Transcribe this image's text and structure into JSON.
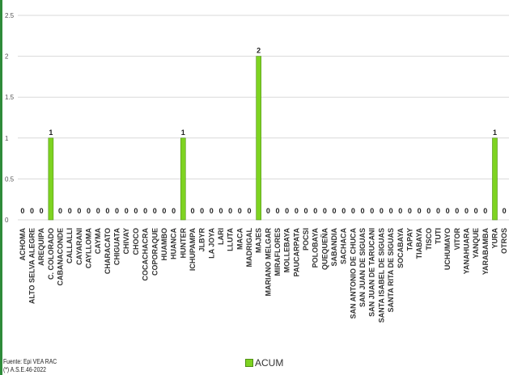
{
  "chart_data": {
    "type": "bar",
    "categories": [
      "ACHOMA",
      "ALTO SELVA ALEGRE",
      "AREQUIPA",
      "C. COLORADO",
      "CABANACONDE",
      "CALLALLI",
      "CAYARANI",
      "CAYLLOMA",
      "CAYMA",
      "CHARACATO",
      "CHIGUATA",
      "CHIVAY",
      "CHOCO",
      "COCACHACRA",
      "COPORAQUE",
      "HUAMBO",
      "HUANCA",
      "HUNTER",
      "ICHUPAMPA",
      "JLBYR",
      "LA JOYA",
      "LARI",
      "LLUTA",
      "MACA",
      "MADRIGAL",
      "MAJES",
      "MARIANO MELGAR",
      "MIRAFLORES",
      "MOLLEBAYA",
      "PAUCARPATA",
      "POCSI",
      "POLOBAYA",
      "QUEQUEÑA",
      "SABANDIA",
      "SACHACA",
      "SAN ANTONIO DE CHUCA",
      "SAN JUAN DE SIGUAS",
      "SAN JUAN DE TARUCANI",
      "SANTA ISABEL DE SIGUAS",
      "SANTA RITA DE SIGUAS",
      "SOCABAYA",
      "TAPAY",
      "TIABAYA",
      "TISCO",
      "TUTI",
      "UCHUMAYO",
      "VITOR",
      "YANAHUARA",
      "YANQUE",
      "YARABAMBA",
      "YURA",
      "OTROS"
    ],
    "series": [
      {
        "name": "ACUM",
        "values": [
          0,
          0,
          0,
          1,
          0,
          0,
          0,
          0,
          0,
          0,
          0,
          0,
          0,
          0,
          0,
          0,
          0,
          1,
          0,
          0,
          0,
          0,
          0,
          0,
          0,
          2,
          0,
          0,
          0,
          0,
          0,
          0,
          0,
          0,
          0,
          0,
          0,
          0,
          0,
          0,
          0,
          0,
          0,
          0,
          0,
          0,
          0,
          0,
          0,
          0,
          1,
          0
        ]
      }
    ],
    "ylim": [
      0,
      2.5
    ],
    "yticks": [
      "0",
      "0.5",
      "1",
      "1.5",
      "2",
      "2.5"
    ],
    "grid": true,
    "legend_position": "bottom",
    "bar_color": "#7ed321"
  },
  "source": {
    "line1": "Fuente:  Epi VEA RAC",
    "line2": "(*) A.S.E.46-2022"
  },
  "legend": {
    "label": "ACUM"
  }
}
